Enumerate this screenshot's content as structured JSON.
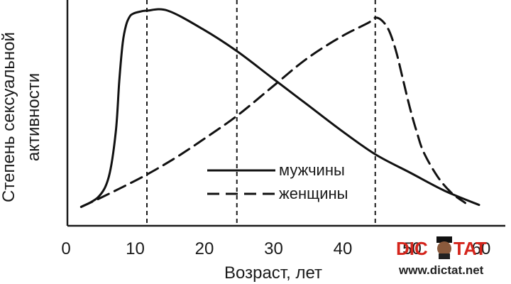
{
  "chart_data": {
    "type": "line",
    "title": "",
    "xlabel": "Возраст, лет",
    "ylabel": [
      "Степень сексуальной",
      "активности"
    ],
    "xlim": [
      0,
      62
    ],
    "ylim": [
      0,
      1
    ],
    "xticks": [
      0,
      10,
      20,
      30,
      40,
      50,
      60
    ],
    "grid": false,
    "legend_position": "bottom-center",
    "reference_lines_x": [
      12,
      25,
      45
    ],
    "series": [
      {
        "name": "мужчины",
        "style": "solid",
        "color": "#111111",
        "points": [
          [
            2.5,
            0.03
          ],
          [
            5,
            0.08
          ],
          [
            6.5,
            0.18
          ],
          [
            7.5,
            0.4
          ],
          [
            8,
            0.65
          ],
          [
            8.5,
            0.84
          ],
          [
            9,
            0.93
          ],
          [
            9.5,
            0.97
          ],
          [
            10,
            0.985
          ],
          [
            11,
            0.995
          ],
          [
            12,
            1.0
          ],
          [
            15,
            1.0
          ],
          [
            20,
            0.91
          ],
          [
            25,
            0.8
          ],
          [
            30,
            0.67
          ],
          [
            35,
            0.54
          ],
          [
            40,
            0.41
          ],
          [
            45,
            0.29
          ],
          [
            50,
            0.2
          ],
          [
            55,
            0.11
          ],
          [
            60,
            0.04
          ]
        ]
      },
      {
        "name": "женщины",
        "style": "dashed",
        "color": "#111111",
        "points": [
          [
            2.5,
            0.03
          ],
          [
            5,
            0.07
          ],
          [
            8,
            0.12
          ],
          [
            12,
            0.19
          ],
          [
            16,
            0.27
          ],
          [
            20,
            0.36
          ],
          [
            25,
            0.48
          ],
          [
            30,
            0.62
          ],
          [
            35,
            0.76
          ],
          [
            40,
            0.87
          ],
          [
            44,
            0.94
          ],
          [
            45,
            0.965
          ],
          [
            46,
            0.95
          ],
          [
            47,
            0.9
          ],
          [
            48,
            0.8
          ],
          [
            49,
            0.66
          ],
          [
            50,
            0.52
          ],
          [
            51,
            0.4
          ],
          [
            52,
            0.3
          ],
          [
            54,
            0.18
          ],
          [
            56,
            0.1
          ],
          [
            58,
            0.05
          ]
        ]
      }
    ]
  },
  "watermark": {
    "brand_left": "DIC",
    "brand_right": "TAT",
    "url": "www.dictat.net",
    "brand_color": "#d4251c",
    "text_color": "#222222"
  }
}
